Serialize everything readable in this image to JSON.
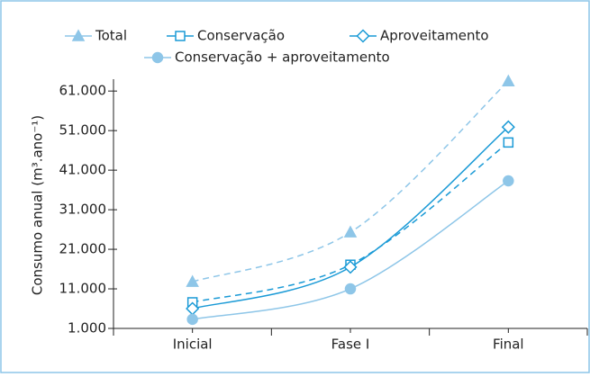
{
  "chart_data": {
    "type": "line",
    "y_label": "Consumo anual (m³.ano⁻¹)",
    "categories": [
      "Inicial",
      "Fase I",
      "Final"
    ],
    "ylim": [
      1000,
      64000
    ],
    "yticks": [
      {
        "value": 1000,
        "label": "1.000"
      },
      {
        "value": 11000,
        "label": "11.000"
      },
      {
        "value": 21000,
        "label": "21.000"
      },
      {
        "value": 31000,
        "label": "31.000"
      },
      {
        "value": 41000,
        "label": "41.000"
      },
      {
        "value": 51000,
        "label": "51.000"
      },
      {
        "value": 61000,
        "label": "61.000"
      }
    ],
    "series": [
      {
        "name": "Total",
        "color": "#8ec6e8",
        "dashed": true,
        "marker": "triangle",
        "values": [
          12800,
          25300,
          63500
        ]
      },
      {
        "name": "Conservação",
        "color": "#1a9ad6",
        "dashed": true,
        "marker": "square",
        "values": [
          7600,
          17100,
          48000
        ]
      },
      {
        "name": "Aproveitamento",
        "color": "#1a9ad6",
        "dashed": false,
        "marker": "diamond",
        "values": [
          6000,
          16500,
          51900
        ]
      },
      {
        "name": "Conservação + aproveitamento",
        "color": "#8ec6e8",
        "dashed": false,
        "marker": "circle",
        "values": [
          3300,
          11000,
          38300
        ]
      }
    ]
  }
}
